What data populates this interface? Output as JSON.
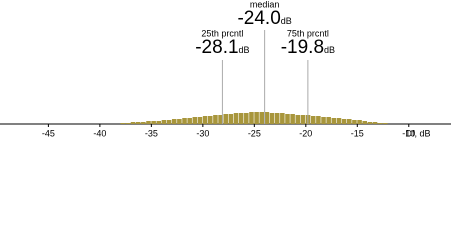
{
  "chart_data": {
    "type": "histogram",
    "x_label": "Df, dB",
    "xlim": [
      -49.7,
      -5.9
    ],
    "xticks": [
      -45,
      -40,
      -35,
      -30,
      -25,
      -20,
      -15,
      -10
    ],
    "ylim": [
      0,
      20
    ],
    "color": "#a8963c",
    "bins": [
      -38,
      -37.5,
      -37,
      -36.5,
      -36,
      -35.5,
      -35,
      -34.5,
      -34,
      -33.5,
      -33,
      -32.5,
      -32,
      -31.5,
      -31,
      -30.5,
      -30,
      -29.5,
      -29,
      -28.5,
      -28,
      -27.5,
      -27,
      -26.5,
      -26,
      -25.5,
      -25,
      -24.5,
      -24,
      -23.5,
      -23,
      -22.5,
      -22,
      -21.5,
      -21,
      -20.5,
      -20,
      -19.5,
      -19,
      -18.5,
      -18,
      -17.5,
      -17,
      -16.5,
      -16,
      -15.5,
      -15,
      -14.5,
      -14,
      -13.5,
      -13,
      -12.5,
      -12
    ],
    "values": [
      1,
      1,
      2,
      2,
      2,
      3,
      3,
      3,
      4,
      4,
      5,
      5,
      6,
      6,
      7,
      7,
      8,
      8,
      9,
      9,
      10,
      10,
      11,
      11,
      11,
      12,
      12,
      12,
      12,
      11,
      11,
      11,
      10,
      10,
      9,
      9,
      9,
      8,
      8,
      7,
      7,
      6,
      6,
      5,
      5,
      4,
      4,
      3,
      2,
      2,
      1,
      1
    ],
    "annotations": [
      {
        "label": "25th prcntl",
        "value": -28.1,
        "unit": "dB"
      },
      {
        "label": "median",
        "value": -24.0,
        "value_label": "-24.0",
        "unit": "dB"
      },
      {
        "label": "75th prcntl",
        "value": -19.8,
        "unit": "dB"
      }
    ]
  }
}
